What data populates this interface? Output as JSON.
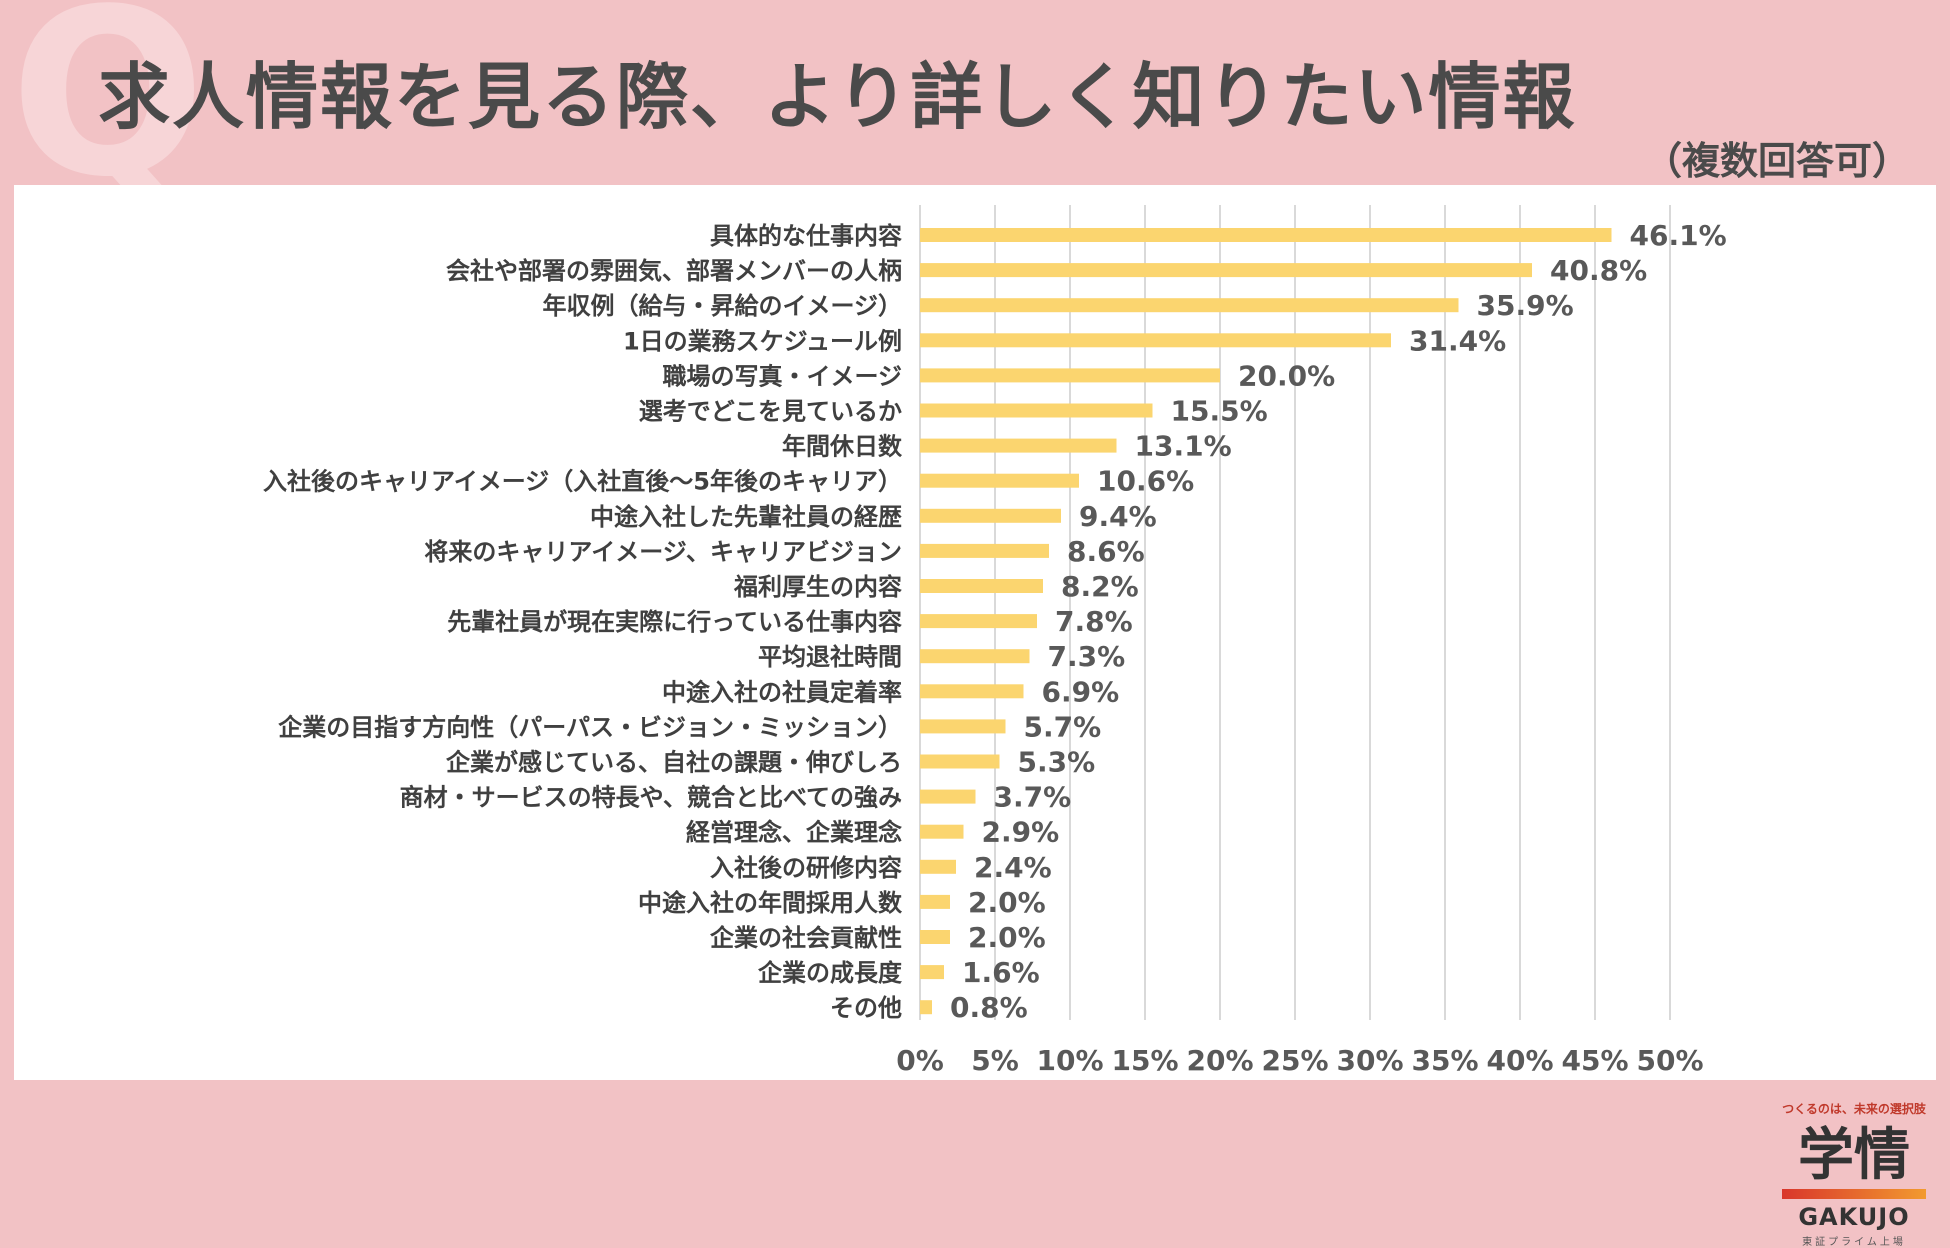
{
  "header": {
    "q_mark": "Q",
    "title": "求人情報を見る際、より詳しく知りたい情報",
    "subtitle": "（複数回答可）"
  },
  "chart_data": {
    "type": "bar",
    "orientation": "horizontal",
    "title": "求人情報を見る際、より詳しく知りたい情報",
    "subtitle": "（複数回答可）",
    "xlim": [
      0,
      50
    ],
    "xticks": [
      0,
      5,
      10,
      15,
      20,
      25,
      30,
      35,
      40,
      45,
      50
    ],
    "xtick_labels": [
      "0%",
      "5%",
      "10%",
      "15%",
      "20%",
      "25%",
      "30%",
      "35%",
      "40%",
      "45%",
      "50%"
    ],
    "grid": true,
    "bar_color": "#FBD56F",
    "categories": [
      "具体的な仕事内容",
      "会社や部署の雰囲気、部署メンバーの人柄",
      "年収例（給与・昇給のイメージ）",
      "1日の業務スケジュール例",
      "職場の写真・イメージ",
      "選考でどこを見ているか",
      "年間休日数",
      "入社後のキャリアイメージ（入社直後～5年後のキャリア）",
      "中途入社した先輩社員の経歴",
      "将来のキャリアイメージ、キャリアビジョン",
      "福利厚生の内容",
      "先輩社員が現在実際に行っている仕事内容",
      "平均退社時間",
      "中途入社の社員定着率",
      "企業の目指す方向性（パーパス・ビジョン・ミッション）",
      "企業が感じている、自社の課題・伸びしろ",
      "商材・サービスの特長や、競合と比べての強み",
      "経営理念、企業理念",
      "入社後の研修内容",
      "中途入社の年間採用人数",
      "企業の社会貢献性",
      "企業の成長度",
      "その他"
    ],
    "values": [
      46.1,
      40.8,
      35.9,
      31.4,
      20.0,
      15.5,
      13.1,
      10.6,
      9.4,
      8.6,
      8.2,
      7.8,
      7.3,
      6.9,
      5.7,
      5.3,
      3.7,
      2.9,
      2.4,
      2.0,
      2.0,
      1.6,
      0.8
    ],
    "value_labels": [
      "46.1%",
      "40.8%",
      "35.9%",
      "31.4%",
      "20.0%",
      "15.5%",
      "13.1%",
      "10.6%",
      "9.4%",
      "8.6%",
      "8.2%",
      "7.8%",
      "7.3%",
      "6.9%",
      "5.7%",
      "5.3%",
      "3.7%",
      "2.9%",
      "2.4%",
      "2.0%",
      "2.0%",
      "1.6%",
      "0.8%"
    ]
  },
  "logo": {
    "tagline": "つくるのは、未来の選択肢",
    "mark": "学情",
    "name": "GAKUJO",
    "sub": "東証プライム上場"
  }
}
